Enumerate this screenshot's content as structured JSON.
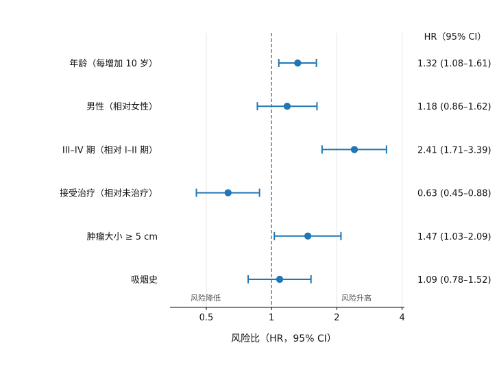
{
  "chart_data": {
    "type": "forest",
    "x_scale": "log2",
    "xlim": [
      0.34,
      4.1
    ],
    "xticks": [
      0.5,
      1,
      2,
      4
    ],
    "xtick_labels": [
      "0.5",
      "1",
      "2",
      "4"
    ],
    "xlabel": "风险比（HR，95% CI）",
    "reference_line": 1,
    "region_labels": {
      "left": "风险降低",
      "right": "风险升高"
    },
    "column_header": "HR（95% CI）",
    "grid": true,
    "rows": [
      {
        "label": "年龄（每增加 10 岁）",
        "hr": 1.32,
        "lower": 1.08,
        "upper": 1.61,
        "text": "1.32 (1.08–1.61)"
      },
      {
        "label": "男性（相对女性）",
        "hr": 1.18,
        "lower": 0.86,
        "upper": 1.62,
        "text": "1.18 (0.86–1.62)"
      },
      {
        "label": "III–IV 期（相对 I–II 期）",
        "hr": 2.41,
        "lower": 1.71,
        "upper": 3.39,
        "text": "2.41 (1.71–3.39)"
      },
      {
        "label": "接受治疗（相对未治疗）",
        "hr": 0.63,
        "lower": 0.45,
        "upper": 0.88,
        "text": "0.63 (0.45–0.88)"
      },
      {
        "label": "肿瘤大小 ≥ 5 cm",
        "hr": 1.47,
        "lower": 1.03,
        "upper": 2.09,
        "text": "1.47 (1.03–2.09)"
      },
      {
        "label": "吸烟史",
        "hr": 1.09,
        "lower": 0.78,
        "upper": 1.52,
        "text": "1.09 (0.78–1.52)"
      }
    ],
    "colors": {
      "marker": "#1f77b4",
      "reference": "#666666",
      "grid": "#e6e6e6",
      "text": "#111111",
      "region_text": "#555555"
    }
  }
}
